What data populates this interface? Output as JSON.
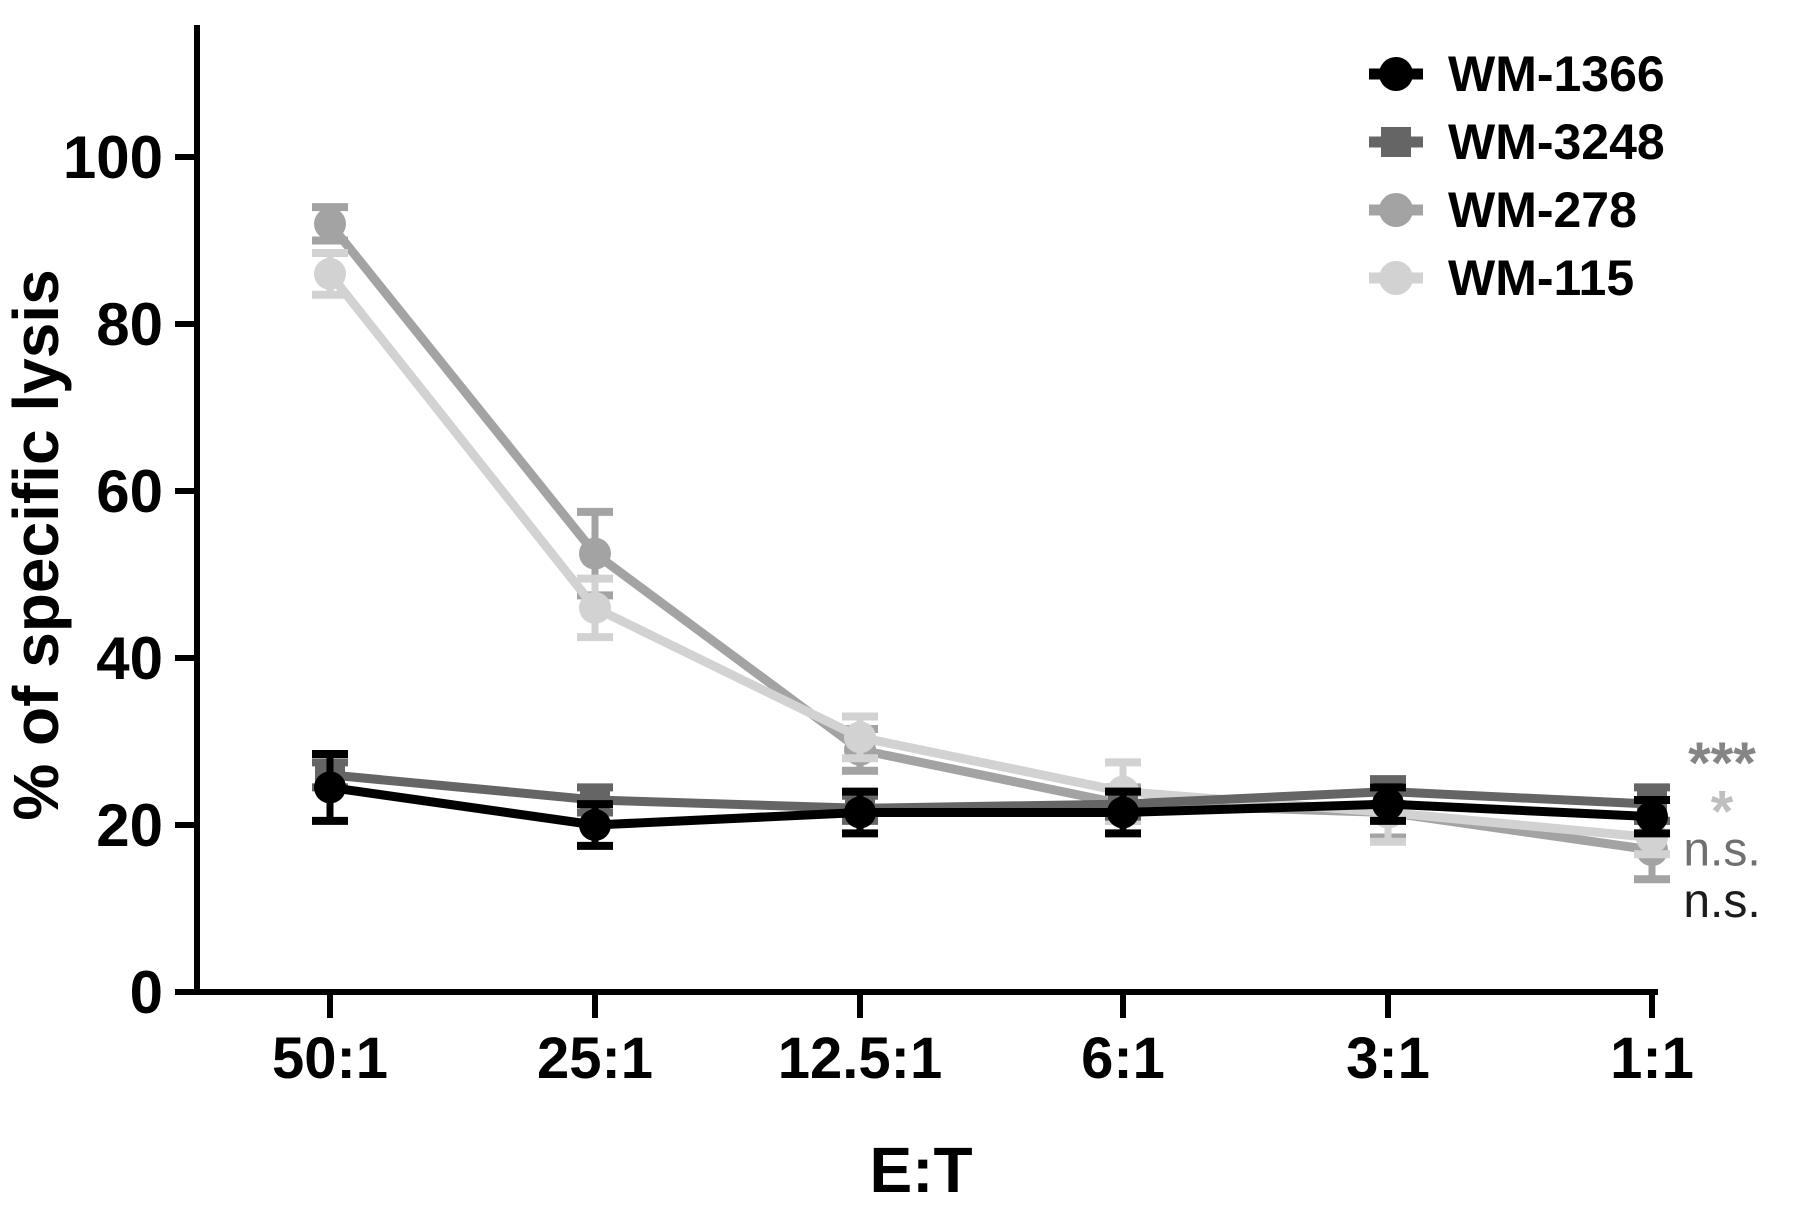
{
  "chart_data": {
    "type": "line",
    "title": "",
    "xlabel": "E:T",
    "ylabel": "% of specific lysis",
    "categories": [
      "50:1",
      "25:1",
      "12.5:1",
      "6:1",
      "3:1",
      "1:1"
    ],
    "y_ticks": [
      0,
      20,
      40,
      60,
      80,
      100
    ],
    "ylim": [
      0,
      115
    ],
    "grid": false,
    "legend_position": "top-right",
    "marker": "filled-circle-with-error-bars",
    "series": [
      {
        "name": "WM-1366",
        "color": "#000000",
        "marker": "circle",
        "values": [
          24.5,
          20,
          21.5,
          21.5,
          22.5,
          21
        ],
        "errors": [
          4,
          2.5,
          2.5,
          2.5,
          2,
          2
        ],
        "significance": "n.s."
      },
      {
        "name": "WM-3248",
        "color": "#656565",
        "marker": "square",
        "values": [
          26,
          23,
          22,
          22.5,
          24,
          22.5
        ],
        "errors": [
          1.5,
          1.5,
          1.5,
          1.5,
          1.5,
          2
        ],
        "significance": "n.s."
      },
      {
        "name": "WM-278",
        "color": "#a3a3a3",
        "marker": "circle",
        "values": [
          92,
          52.5,
          29,
          22.5,
          21.5,
          17
        ],
        "errors": [
          2,
          5,
          2.5,
          2,
          3,
          3.5
        ],
        "significance": "***"
      },
      {
        "name": "WM-115",
        "color": "#d2d2d2",
        "marker": "circle",
        "values": [
          86,
          46,
          30.5,
          24,
          21.5,
          18.5
        ],
        "errors": [
          2.5,
          3.5,
          2.5,
          3.5,
          3.5,
          2
        ],
        "significance": "*"
      }
    ],
    "annotations": [
      {
        "text": "***",
        "color": "#858585",
        "y_value": 29.6
      },
      {
        "text": "*",
        "color": "#bfbfbf",
        "y_value": 23.8
      },
      {
        "text": "n.s.",
        "color": "#707070",
        "y_value": 17.2
      },
      {
        "text": "n.s.",
        "color": "#1c1c1c",
        "y_value": 11.0
      }
    ]
  }
}
